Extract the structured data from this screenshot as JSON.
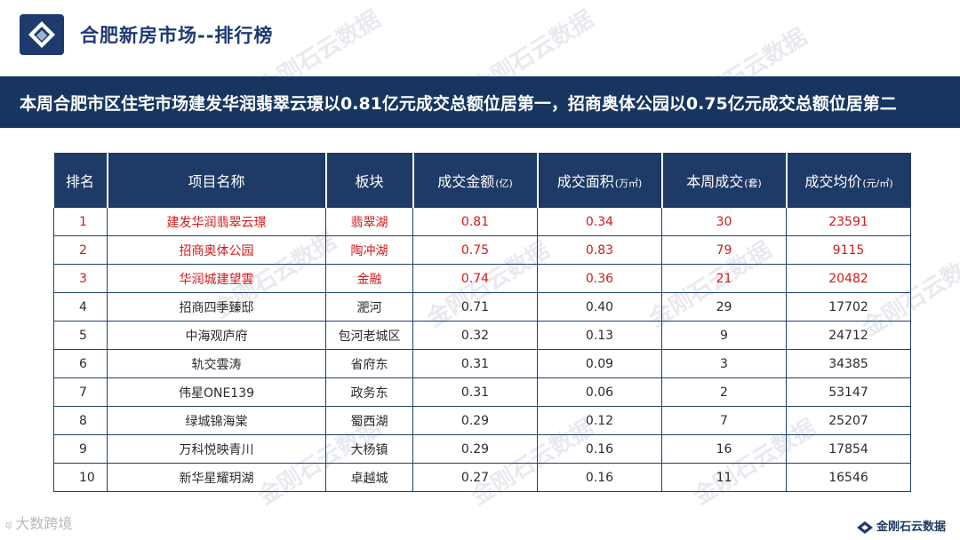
{
  "header": {
    "title": "合肥新房市场--排行榜"
  },
  "banner": {
    "text": "本周合肥市区住宅市场建发华润翡翠云璟以0.81亿元成交总额位居第一，招商奥体公园以0.75亿元成交总额位居第二"
  },
  "table": {
    "columns": [
      {
        "label": "排名",
        "unit": ""
      },
      {
        "label": "项目名称",
        "unit": ""
      },
      {
        "label": "板块",
        "unit": ""
      },
      {
        "label": "成交金额",
        "unit": "(亿)"
      },
      {
        "label": "成交面积",
        "unit": "(万㎡)"
      },
      {
        "label": "本周成交",
        "unit": "(套)"
      },
      {
        "label": "成交均价",
        "unit": "(元/㎡)"
      }
    ],
    "rows": [
      {
        "rank": "1",
        "name": "建发华润翡翠云璟",
        "area": "翡翠湖",
        "amount": "0.81",
        "size": "0.34",
        "units": "30",
        "price": "23591",
        "highlight": true
      },
      {
        "rank": "2",
        "name": "招商奥体公园",
        "area": "陶冲湖",
        "amount": "0.75",
        "size": "0.83",
        "units": "79",
        "price": "9115",
        "highlight": true
      },
      {
        "rank": "3",
        "name": "华润城建望雲",
        "area": "金融",
        "amount": "0.74",
        "size": "0.36",
        "units": "21",
        "price": "20482",
        "highlight": true
      },
      {
        "rank": "4",
        "name": "招商四季臻邸",
        "area": "淝河",
        "amount": "0.71",
        "size": "0.40",
        "units": "29",
        "price": "17702",
        "highlight": false
      },
      {
        "rank": "5",
        "name": "中海观庐府",
        "area": "包河老城区",
        "amount": "0.32",
        "size": "0.13",
        "units": "9",
        "price": "24712",
        "highlight": false
      },
      {
        "rank": "6",
        "name": "轨交雲涛",
        "area": "省府东",
        "amount": "0.31",
        "size": "0.09",
        "units": "3",
        "price": "34385",
        "highlight": false
      },
      {
        "rank": "7",
        "name": "伟星ONE139",
        "area": "政务东",
        "amount": "0.31",
        "size": "0.06",
        "units": "2",
        "price": "53147",
        "highlight": false
      },
      {
        "rank": "8",
        "name": "绿城锦海棠",
        "area": "蜀西湖",
        "amount": "0.29",
        "size": "0.12",
        "units": "7",
        "price": "25207",
        "highlight": false
      },
      {
        "rank": "9",
        "name": "万科悦映青川",
        "area": "大杨镇",
        "amount": "0.29",
        "size": "0.16",
        "units": "16",
        "price": "17854",
        "highlight": false
      },
      {
        "rank": "10",
        "name": "新华星耀玥湖",
        "area": "卓越城",
        "amount": "0.27",
        "size": "0.16",
        "units": "11",
        "price": "16546",
        "highlight": false
      }
    ]
  },
  "watermark": {
    "text": "金刚石云数据"
  },
  "footer": {
    "left_text": "大数跨境",
    "right_text": "金刚石云数据"
  },
  "colors": {
    "brand_navy": "#1e3a66",
    "highlight_red": "#d21a1a"
  }
}
